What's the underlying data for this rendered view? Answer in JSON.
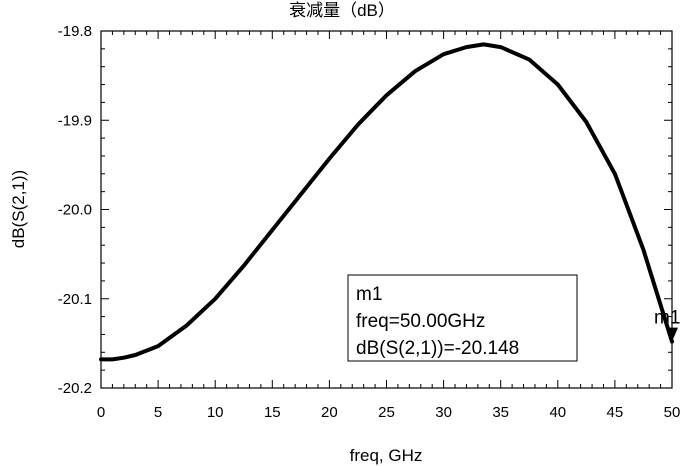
{
  "chart_data": {
    "type": "line",
    "title": "衰减量（dB）",
    "xlabel": "freq, GHz",
    "ylabel": "dB(S(2,1))",
    "xlim": [
      0,
      50
    ],
    "ylim": [
      -20.2,
      -19.8
    ],
    "x_ticks": [
      "0",
      "5",
      "10",
      "15",
      "20",
      "25",
      "30",
      "35",
      "40",
      "45",
      "50"
    ],
    "y_ticks": [
      "-19.8",
      "-19.9",
      "-20.0",
      "-20.1",
      "-20.2"
    ],
    "grid": false,
    "series": [
      {
        "color": "#000000",
        "points": [
          [
            0,
            -20.168
          ],
          [
            1,
            -20.168
          ],
          [
            2,
            -20.166
          ],
          [
            3,
            -20.163
          ],
          [
            5,
            -20.153
          ],
          [
            7.5,
            -20.13
          ],
          [
            10,
            -20.1
          ],
          [
            12.5,
            -20.063
          ],
          [
            15,
            -20.023
          ],
          [
            17.5,
            -19.983
          ],
          [
            20,
            -19.943
          ],
          [
            22.5,
            -19.905
          ],
          [
            25,
            -19.872
          ],
          [
            27.5,
            -19.845
          ],
          [
            30,
            -19.826
          ],
          [
            32,
            -19.818
          ],
          [
            33.5,
            -19.815
          ],
          [
            35,
            -19.818
          ],
          [
            37.5,
            -19.832
          ],
          [
            40,
            -19.86
          ],
          [
            42.5,
            -19.902
          ],
          [
            45,
            -19.96
          ],
          [
            47.5,
            -20.045
          ],
          [
            50,
            -20.148
          ]
        ]
      }
    ],
    "marker": {
      "name": "m1",
      "x": 50,
      "y": -20.148,
      "lines": [
        "m1",
        "freq=50.00GHz",
        "dB(S(2,1))=-20.148"
      ]
    }
  }
}
